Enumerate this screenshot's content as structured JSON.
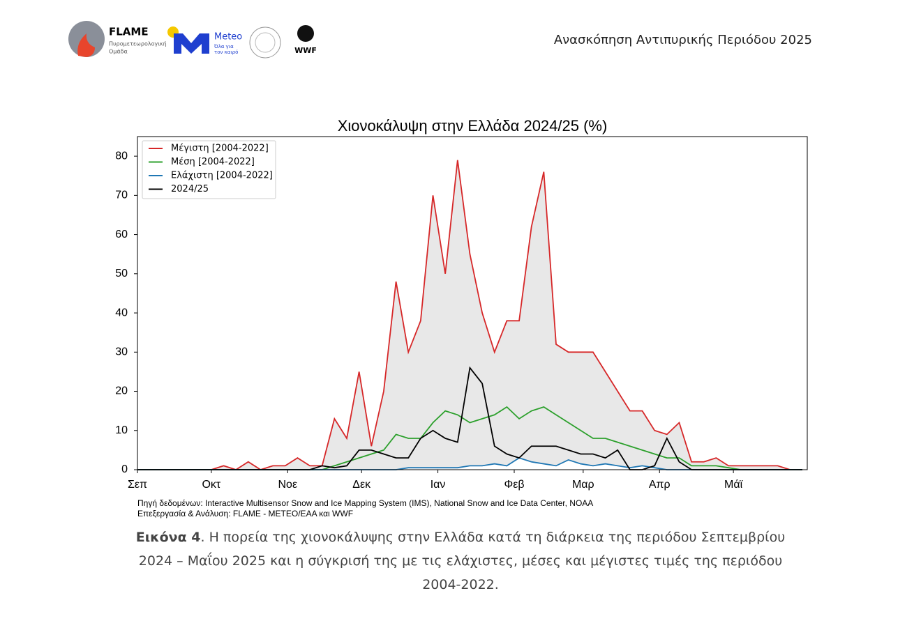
{
  "header": {
    "logos": {
      "flame": "FLAME",
      "flame_sub1": "Πυρομετεωρολογική",
      "flame_sub2": "Ομάδα",
      "meteo": "Meteo",
      "meteo_sub1": "Όλα για",
      "meteo_sub2": "τον καιρό",
      "wwf": "WWF"
    },
    "title": "Ανασκόπηση Αντιπυρικής Περιόδου 2025"
  },
  "chart_data": {
    "type": "line",
    "title": "Χιονοκάλυψη στην Ελλάδα 2024/25 (%)",
    "legend": "upper left",
    "grid": false,
    "shade_between": [
      0,
      2
    ],
    "shade_color": "#e8e8e8",
    "x": [
      0,
      5,
      10,
      15,
      20,
      25,
      30,
      35,
      40,
      45,
      50,
      55,
      60,
      65,
      70,
      75,
      80,
      85,
      90,
      95,
      100,
      105,
      110,
      115,
      120,
      125,
      130,
      135,
      140,
      145,
      150,
      155,
      160,
      165,
      170,
      175,
      180,
      185,
      190,
      195,
      200,
      205,
      210,
      215,
      220,
      225,
      230,
      235,
      240,
      245,
      250,
      255,
      260,
      265,
      270
    ],
    "xlim": [
      0,
      272
    ],
    "xticks": [
      {
        "value": 0,
        "label": "Σεπ"
      },
      {
        "value": 30,
        "label": "Οκτ"
      },
      {
        "value": 61,
        "label": "Νοε"
      },
      {
        "value": 91,
        "label": "Δεκ"
      },
      {
        "value": 122,
        "label": "Ιαν"
      },
      {
        "value": 153,
        "label": "Φεβ"
      },
      {
        "value": 181,
        "label": "Μαρ"
      },
      {
        "value": 212,
        "label": "Απρ"
      },
      {
        "value": 242,
        "label": "Μάϊ"
      }
    ],
    "ylim": [
      0,
      85
    ],
    "yticks": [
      0,
      10,
      20,
      30,
      40,
      50,
      60,
      70,
      80
    ],
    "series": [
      {
        "name": "Μέγιστη [2004-2022]",
        "color": "#d62728",
        "values": [
          0,
          0,
          0,
          0,
          0,
          0,
          0,
          1,
          0,
          2,
          0,
          1,
          1,
          3,
          1,
          1,
          13,
          8,
          25,
          6,
          20,
          48,
          30,
          38,
          70,
          50,
          79,
          55,
          40,
          30,
          38,
          38,
          62,
          76,
          32,
          30,
          30,
          30,
          25,
          20,
          15,
          15,
          10,
          9,
          12,
          2,
          2,
          3,
          1,
          1,
          1,
          1,
          1,
          0,
          0
        ]
      },
      {
        "name": "Μέση [2004-2022]",
        "color": "#2ca02c",
        "values": [
          0,
          0,
          0,
          0,
          0,
          0,
          0,
          0,
          0,
          0,
          0,
          0,
          0,
          0,
          0,
          0,
          1,
          2,
          3,
          4,
          5,
          9,
          8,
          8,
          12,
          15,
          14,
          12,
          13,
          14,
          16,
          13,
          15,
          16,
          14,
          12,
          10,
          8,
          8,
          7,
          6,
          5,
          4,
          3,
          3,
          1,
          1,
          1,
          0.5,
          0,
          0,
          0,
          0,
          0,
          0
        ]
      },
      {
        "name": "Ελάχιστη [2004-2022]",
        "color": "#1f77b4",
        "values": [
          0,
          0,
          0,
          0,
          0,
          0,
          0,
          0,
          0,
          0,
          0,
          0,
          0,
          0,
          0,
          0,
          0,
          0,
          0,
          0,
          0,
          0,
          0.5,
          0.5,
          0.5,
          0.5,
          0.5,
          1,
          1,
          1.5,
          1,
          3,
          2,
          1.5,
          1,
          2.5,
          1.5,
          1,
          1.5,
          1,
          0.5,
          1,
          0.5,
          0,
          0,
          0,
          0,
          0,
          0,
          0,
          0,
          0,
          0,
          0,
          0
        ]
      },
      {
        "name": "2024/25",
        "color": "#000000",
        "values": [
          0,
          0,
          0,
          0,
          0,
          0,
          0,
          0,
          0,
          0,
          0,
          0,
          0,
          0,
          0,
          1,
          0.5,
          1,
          5,
          5,
          4,
          3,
          3,
          8,
          10,
          8,
          7,
          26,
          22,
          6,
          4,
          3,
          6,
          6,
          6,
          5,
          4,
          4,
          3,
          5,
          0,
          0,
          1,
          8,
          2,
          0,
          0,
          0,
          0,
          0,
          0,
          0,
          0,
          0,
          0
        ]
      }
    ],
    "source1": "Πηγή δεδομένων: Interactive Multisensor Snow and Ice Mapping System (IMS), National Snow and Ice Data Center, NOAA",
    "source2": "Επεξεργασία & Ανάλυση: FLAME - METEO/EAA και WWF"
  },
  "caption": {
    "label": "Εικόνα 4",
    "text": ". Η πορεία της χιονοκάλυψης στην Ελλάδα κατά τη διάρκεια της περιόδου Σεπτεμβρίου 2024 – Μαΐου 2025 και η σύγκρισή της με τις ελάχιστες, μέσες και μέγιστες τιμές της περιόδου 2004-2022."
  }
}
